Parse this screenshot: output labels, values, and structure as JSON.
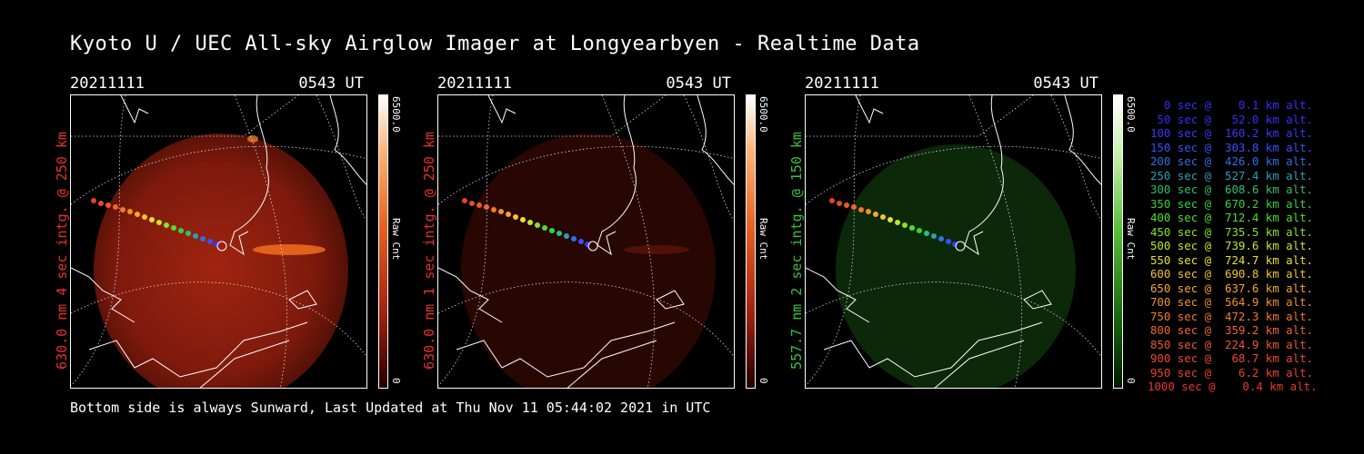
{
  "title": "Kyoto U / UEC All-sky Airglow Imager at Longyearbyen - Realtime Data",
  "footer": "Bottom side is always Sunward, Last Updated at Thu Nov 11 05:44:02 2021 in UTC",
  "panels": [
    {
      "date": "20211111",
      "time": "0543 UT",
      "ylabel": "630.0 nm 4 sec intg. @ 250 km",
      "label_color": "#e8312a",
      "cbar_max": "6500.0",
      "cbar_min": "0",
      "cbar_unit": "Raw Cnt",
      "intensity": 0.85
    },
    {
      "date": "20211111",
      "time": "0543 UT",
      "ylabel": "630.0 nm 1 sec intg. @ 250 km",
      "label_color": "#e8312a",
      "cbar_max": "6500.0",
      "cbar_min": "0",
      "cbar_unit": "Raw Cnt",
      "intensity": 0.25
    },
    {
      "date": "20211111",
      "time": "0543 UT",
      "ylabel": "557.7 nm 2 sec intg. @ 150 km",
      "label_color": "#37c23a",
      "cbar_max": "6500.0",
      "cbar_min": "0",
      "cbar_unit": "Raw Cnt",
      "intensity": 0.35
    }
  ],
  "legend": [
    {
      "text": "0 sec @    0.1 km alt.",
      "color": "#3a2bff"
    },
    {
      "text": "50 sec @   52.0 km alt.",
      "color": "#3a2bff"
    },
    {
      "text": "100 sec @  160.2 km alt.",
      "color": "#3a36ff"
    },
    {
      "text": "150 sec @  303.8 km alt.",
      "color": "#3552ff"
    },
    {
      "text": "200 sec @  426.0 km alt.",
      "color": "#2f6fe8"
    },
    {
      "text": "250 sec @  527.4 km alt.",
      "color": "#2aa0b8"
    },
    {
      "text": "300 sec @  608.6 km alt.",
      "color": "#2cc070"
    },
    {
      "text": "350 sec @  670.2 km alt.",
      "color": "#36d23c"
    },
    {
      "text": "400 sec @  712.4 km alt.",
      "color": "#55dc2c"
    },
    {
      "text": "450 sec @  735.5 km alt.",
      "color": "#8ce228"
    },
    {
      "text": "500 sec @  739.6 km alt.",
      "color": "#c2e62a"
    },
    {
      "text": "550 sec @  724.7 km alt.",
      "color": "#e8e22c"
    },
    {
      "text": "600 sec @  690.8 km alt.",
      "color": "#f2c42c"
    },
    {
      "text": "650 sec @  637.6 km alt.",
      "color": "#f2a82c"
    },
    {
      "text": "700 sec @  564.9 km alt.",
      "color": "#f2902c"
    },
    {
      "text": "750 sec @  472.3 km alt.",
      "color": "#f07a2c"
    },
    {
      "text": "800 sec @  359.2 km alt.",
      "color": "#ee682c"
    },
    {
      "text": "850 sec @  224.9 km alt.",
      "color": "#ec582c"
    },
    {
      "text": "900 sec @   68.7 km alt.",
      "color": "#ea4a2c"
    },
    {
      "text": "950 sec @    6.2 km alt.",
      "color": "#e8402c"
    },
    {
      "text": "1000 sec @    0.4 km alt.",
      "color": "#e6382c"
    }
  ]
}
